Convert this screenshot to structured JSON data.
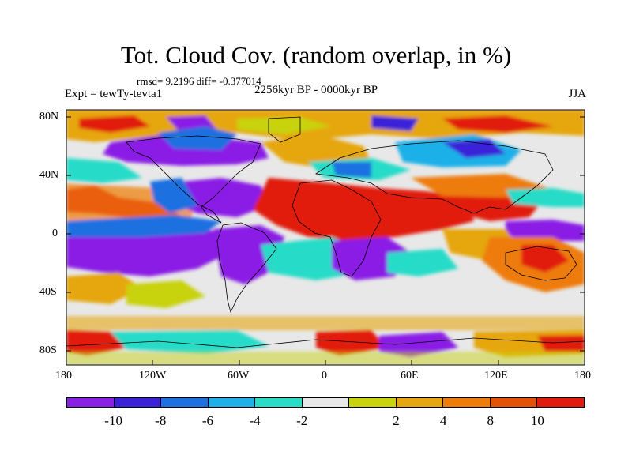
{
  "title": "Tot. Cloud Cov. (random overlap, in %)",
  "stats": "rmsd= 9.2196 diff= -0.377014",
  "experiment": "Expt = tewTy-tevta1",
  "period": "2256kyr BP - 0000kyr BP",
  "season": "JJA",
  "axes": {
    "lat_labels": [
      "80N",
      "40N",
      "0",
      "40S",
      "80S"
    ],
    "lon_labels": [
      "180",
      "120W",
      "60W",
      "0",
      "60E",
      "120E",
      "180"
    ]
  },
  "colorbar": {
    "colors": [
      "#8a1fe6",
      "#3b22d9",
      "#1e6fe0",
      "#1fb0e8",
      "#28dcc8",
      "#e8e8e8",
      "#c8d20f",
      "#e6a60f",
      "#ee7c08",
      "#e35206",
      "#e11b0e"
    ],
    "tick_labels": [
      "-10",
      "-8",
      "-6",
      "-4",
      "-2",
      "2",
      "4",
      "8",
      "10"
    ]
  }
}
